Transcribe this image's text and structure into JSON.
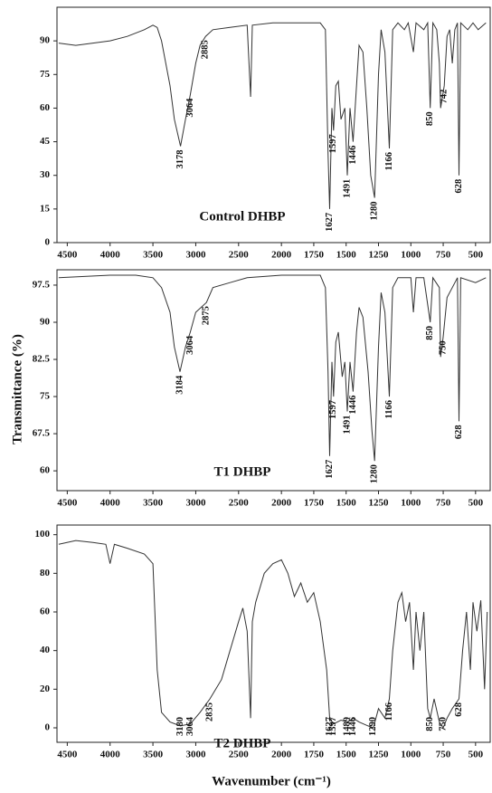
{
  "ylabel": "Transmittance (%)",
  "xlabel": "Wavenumber (cm⁻¹)",
  "chart_data": [
    {
      "type": "line",
      "label": "Control DHBP",
      "color": "#333333",
      "xlim": [
        4620,
        380
      ],
      "x_scale_break": 2000,
      "xticks": [
        4500,
        4000,
        3500,
        3000,
        2500,
        2000,
        1750,
        1500,
        1250,
        1000,
        750,
        500
      ],
      "ylim": [
        0,
        105
      ],
      "yticks": [
        0,
        15,
        30,
        45,
        60,
        75,
        90
      ],
      "x": [
        4600,
        4400,
        4200,
        4000,
        3800,
        3600,
        3500,
        3450,
        3400,
        3300,
        3250,
        3178,
        3120,
        3064,
        3000,
        2950,
        2885,
        2800,
        2600,
        2400,
        2360,
        2340,
        2100,
        1800,
        1700,
        1660,
        1640,
        1627,
        1610,
        1597,
        1580,
        1560,
        1540,
        1510,
        1491,
        1470,
        1446,
        1420,
        1400,
        1370,
        1340,
        1310,
        1280,
        1250,
        1230,
        1200,
        1166,
        1140,
        1100,
        1050,
        1020,
        980,
        960,
        900,
        870,
        850,
        830,
        800,
        780,
        770,
        742,
        720,
        700,
        680,
        660,
        640,
        628,
        615,
        560,
        520,
        480,
        420
      ],
      "values": [
        89,
        88,
        89,
        90,
        92,
        95,
        97,
        96,
        90,
        70,
        55,
        43,
        55,
        66,
        80,
        88,
        92,
        95,
        96,
        97,
        65,
        97,
        98,
        98,
        98,
        95,
        40,
        15,
        60,
        50,
        70,
        72,
        55,
        60,
        30,
        60,
        45,
        70,
        88,
        85,
        60,
        30,
        20,
        75,
        95,
        85,
        42,
        95,
        98,
        95,
        98,
        85,
        98,
        95,
        98,
        60,
        98,
        95,
        80,
        60,
        70,
        92,
        95,
        80,
        95,
        98,
        30,
        98,
        95,
        98,
        95,
        98
      ],
      "peaks": [
        3178,
        3064,
        2885,
        1627,
        1597,
        1491,
        1446,
        1280,
        1166,
        850,
        742,
        628
      ]
    },
    {
      "type": "line",
      "label": "T1 DHBP",
      "color": "#333333",
      "xlim": [
        4620,
        380
      ],
      "x_scale_break": 2000,
      "xticks": [
        4500,
        4000,
        3500,
        3000,
        2500,
        2000,
        1750,
        1500,
        1250,
        1000,
        750,
        500
      ],
      "ylim": [
        56,
        100.6
      ],
      "yticks": [
        60,
        67.5,
        75,
        82.5,
        90,
        97.5
      ],
      "x": [
        4600,
        4000,
        3700,
        3500,
        3400,
        3300,
        3250,
        3184,
        3120,
        3064,
        3000,
        2875,
        2800,
        2600,
        2400,
        2000,
        1700,
        1660,
        1640,
        1627,
        1610,
        1597,
        1580,
        1560,
        1530,
        1510,
        1491,
        1470,
        1446,
        1420,
        1400,
        1370,
        1330,
        1300,
        1280,
        1250,
        1230,
        1200,
        1166,
        1140,
        1100,
        1000,
        980,
        960,
        900,
        850,
        830,
        780,
        770,
        750,
        720,
        680,
        640,
        628,
        615,
        500,
        420
      ],
      "values": [
        99,
        99.5,
        99.5,
        99,
        97,
        92,
        85,
        80,
        85,
        88,
        92,
        94,
        97,
        98,
        99,
        99.5,
        99.5,
        97,
        80,
        63,
        82,
        75,
        86,
        88,
        79,
        82,
        72,
        82,
        76,
        88,
        93,
        91,
        80,
        68,
        62,
        85,
        96,
        92,
        75,
        97,
        99,
        99,
        92,
        99,
        99,
        90,
        99,
        97,
        83,
        87,
        95,
        97,
        99,
        70,
        99,
        98,
        99
      ],
      "peaks": [
        3184,
        3064,
        2875,
        1627,
        1597,
        1491,
        1446,
        1280,
        1166,
        850,
        750,
        628
      ]
    },
    {
      "type": "line",
      "label": "T2 DHBP",
      "color": "#333333",
      "xlim": [
        4620,
        380
      ],
      "x_scale_break": 2000,
      "xticks": [
        4500,
        4000,
        3500,
        3000,
        2500,
        2000,
        1750,
        1500,
        1250,
        1000,
        750,
        500
      ],
      "ylim": [
        -7.5,
        105
      ],
      "yticks": [
        0,
        20,
        40,
        60,
        80,
        100
      ],
      "x": [
        4600,
        4400,
        4200,
        4050,
        4000,
        3950,
        3800,
        3600,
        3500,
        3450,
        3400,
        3300,
        3180,
        3064,
        2950,
        2835,
        2700,
        2600,
        2500,
        2450,
        2400,
        2360,
        2340,
        2300,
        2200,
        2100,
        2000,
        1950,
        1900,
        1850,
        1800,
        1750,
        1700,
        1650,
        1627,
        1597,
        1540,
        1489,
        1446,
        1400,
        1330,
        1290,
        1250,
        1200,
        1166,
        1140,
        1100,
        1070,
        1040,
        1010,
        980,
        960,
        930,
        900,
        870,
        850,
        820,
        780,
        750,
        720,
        680,
        628,
        600,
        570,
        540,
        520,
        490,
        460,
        430,
        410
      ],
      "values": [
        95,
        97,
        96,
        95,
        85,
        95,
        93,
        90,
        85,
        30,
        8,
        3,
        1,
        2,
        8,
        15,
        25,
        40,
        55,
        62,
        50,
        5,
        55,
        65,
        80,
        85,
        87,
        80,
        68,
        75,
        65,
        70,
        55,
        30,
        5,
        2,
        4,
        3,
        5,
        3,
        1,
        0,
        10,
        5,
        15,
        40,
        65,
        70,
        55,
        65,
        30,
        60,
        40,
        60,
        10,
        5,
        15,
        3,
        0,
        5,
        10,
        15,
        40,
        60,
        30,
        65,
        50,
        66,
        20,
        60
      ],
      "peaks": [
        3180,
        3064,
        2835,
        1627,
        1597,
        1489,
        1446,
        1290,
        1166,
        850,
        750,
        628
      ]
    }
  ]
}
